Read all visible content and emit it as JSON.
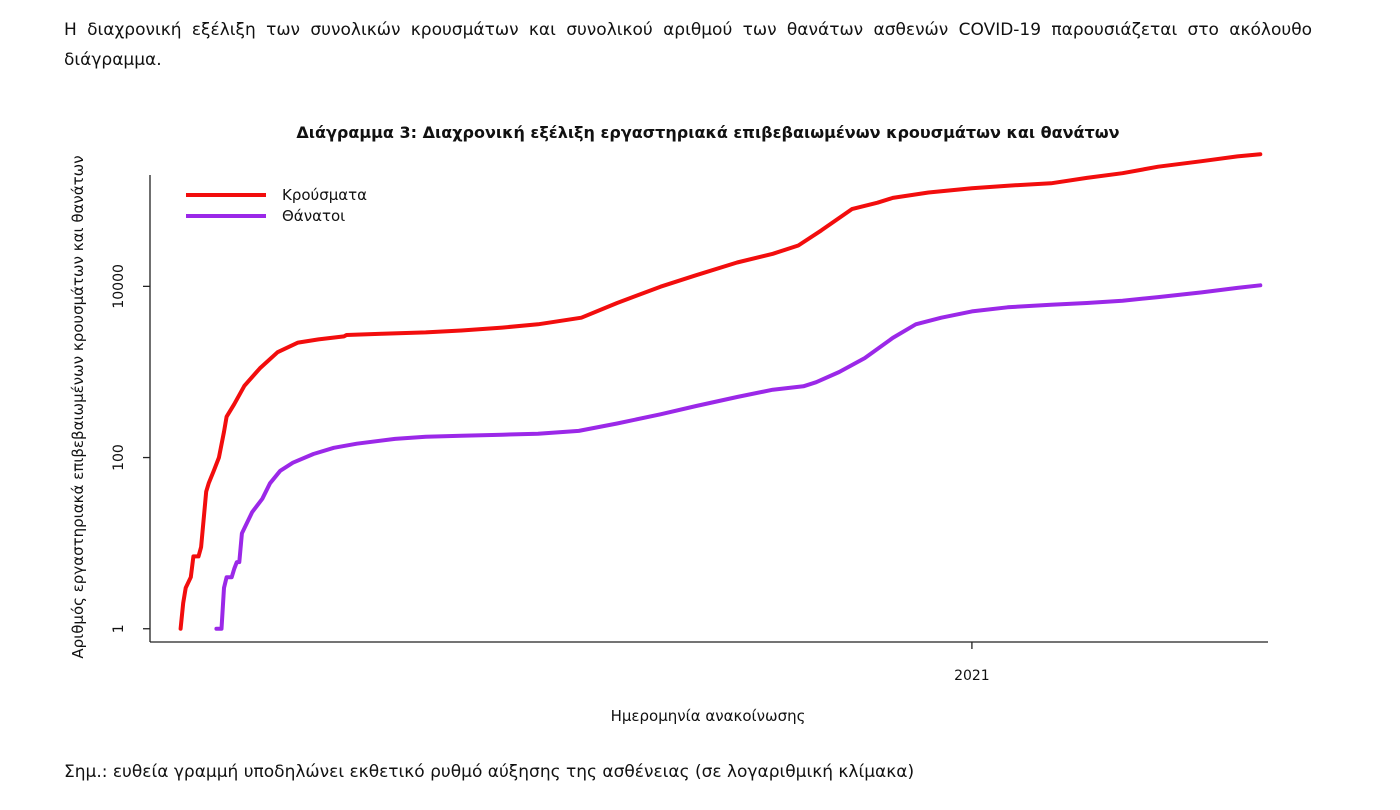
{
  "page": {
    "intro_text": "Η διαχρονική εξέλιξη των συνολικών κρουσμάτων και συνολικού αριθμού των θανάτων ασθενών COVID-19 παρουσιάζεται στο ακόλουθο διάγραμμα.",
    "note_text": "Σημ.: ευθεία γραμμή υποδηλώνει εκθετικό ρυθμό αύξησης της ασθένειας (σε λογαριθμική κλίμακα)"
  },
  "chart_data": {
    "type": "line",
    "title": "Διάγραμμα 3: Διαχρονική εξέλιξη εργαστηριακά επιβεβαιωμένων κρουσμάτων και θανάτων",
    "xlabel": "Ημερομηνία ανακοίνωσης",
    "ylabel": "Αριθμός εργαστηριακά επιβεβαιωμένων κρουσμάτων και θανάτων",
    "y_scale": "log",
    "ylim": [
      0.7,
      200000
    ],
    "y_ticks": [
      1,
      100,
      10000
    ],
    "y_tick_labels": [
      "1",
      "100",
      "10000"
    ],
    "x_unit": "date",
    "xlim": [
      "2020-02-14",
      "2021-04-27"
    ],
    "x_ticks": [
      "2021-01-01"
    ],
    "x_tick_labels": [
      "2021"
    ],
    "grid": false,
    "legend_position": "top-left",
    "series": [
      {
        "name": "Κρούσματα",
        "color": "#f20d0d",
        "points": [
          [
            "2020-02-26",
            1
          ],
          [
            "2020-02-27",
            2
          ],
          [
            "2020-02-28",
            3
          ],
          [
            "2020-03-01",
            4
          ],
          [
            "2020-03-02",
            7
          ],
          [
            "2020-03-04",
            7
          ],
          [
            "2020-03-05",
            9
          ],
          [
            "2020-03-07",
            40
          ],
          [
            "2020-03-08",
            50
          ],
          [
            "2020-03-10",
            70
          ],
          [
            "2020-03-12",
            100
          ],
          [
            "2020-03-14",
            200
          ],
          [
            "2020-03-15",
            300
          ],
          [
            "2020-03-18",
            420
          ],
          [
            "2020-03-22",
            690
          ],
          [
            "2020-03-28",
            1100
          ],
          [
            "2020-04-04",
            1700
          ],
          [
            "2020-04-12",
            2200
          ],
          [
            "2020-04-20",
            2400
          ],
          [
            "2020-04-30",
            2600
          ],
          [
            "2020-05-01",
            2700
          ],
          [
            "2020-05-15",
            2800
          ],
          [
            "2020-06-01",
            2900
          ],
          [
            "2020-06-15",
            3050
          ],
          [
            "2020-07-01",
            3300
          ],
          [
            "2020-07-15",
            3600
          ],
          [
            "2020-08-01",
            4300
          ],
          [
            "2020-08-15",
            6400
          ],
          [
            "2020-09-01",
            9900
          ],
          [
            "2020-09-15",
            13500
          ],
          [
            "2020-10-01",
            19000
          ],
          [
            "2020-10-15",
            24000
          ],
          [
            "2020-10-25",
            30000
          ],
          [
            "2020-11-03",
            45000
          ],
          [
            "2020-11-15",
            80000
          ],
          [
            "2020-11-25",
            95000
          ],
          [
            "2020-12-01",
            108000
          ],
          [
            "2020-12-15",
            125000
          ],
          [
            "2021-01-01",
            140000
          ],
          [
            "2021-01-15",
            150000
          ],
          [
            "2021-02-01",
            160000
          ],
          [
            "2021-02-15",
            185000
          ],
          [
            "2021-03-01",
            210000
          ],
          [
            "2021-03-15",
            250000
          ],
          [
            "2021-04-01",
            290000
          ],
          [
            "2021-04-15",
            330000
          ],
          [
            "2021-04-24",
            350000
          ]
        ]
      },
      {
        "name": "Θάνατοι",
        "color": "#9b28e8",
        "points": [
          [
            "2020-03-11",
            1
          ],
          [
            "2020-03-13",
            1
          ],
          [
            "2020-03-14",
            3
          ],
          [
            "2020-03-15",
            4
          ],
          [
            "2020-03-17",
            4
          ],
          [
            "2020-03-18",
            5
          ],
          [
            "2020-03-19",
            6
          ],
          [
            "2020-03-20",
            6
          ],
          [
            "2020-03-21",
            13
          ],
          [
            "2020-03-25",
            23
          ],
          [
            "2020-03-29",
            33
          ],
          [
            "2020-04-01",
            50
          ],
          [
            "2020-04-05",
            70
          ],
          [
            "2020-04-10",
            87
          ],
          [
            "2020-04-18",
            110
          ],
          [
            "2020-04-26",
            130
          ],
          [
            "2020-05-05",
            145
          ],
          [
            "2020-05-20",
            165
          ],
          [
            "2020-06-01",
            175
          ],
          [
            "2020-06-15",
            180
          ],
          [
            "2020-07-01",
            185
          ],
          [
            "2020-07-15",
            190
          ],
          [
            "2020-07-31",
            205
          ],
          [
            "2020-08-15",
            250
          ],
          [
            "2020-09-01",
            320
          ],
          [
            "2020-09-15",
            400
          ],
          [
            "2020-10-01",
            510
          ],
          [
            "2020-10-15",
            620
          ],
          [
            "2020-10-27",
            680
          ],
          [
            "2020-11-01",
            760
          ],
          [
            "2020-11-10",
            1000
          ],
          [
            "2020-11-20",
            1450
          ],
          [
            "2020-12-01",
            2500
          ],
          [
            "2020-12-10",
            3600
          ],
          [
            "2020-12-20",
            4300
          ],
          [
            "2021-01-01",
            5100
          ],
          [
            "2021-01-15",
            5700
          ],
          [
            "2021-02-01",
            6100
          ],
          [
            "2021-02-15",
            6400
          ],
          [
            "2021-03-01",
            6800
          ],
          [
            "2021-03-15",
            7500
          ],
          [
            "2021-04-01",
            8500
          ],
          [
            "2021-04-15",
            9600
          ],
          [
            "2021-04-24",
            10300
          ]
        ]
      }
    ]
  }
}
